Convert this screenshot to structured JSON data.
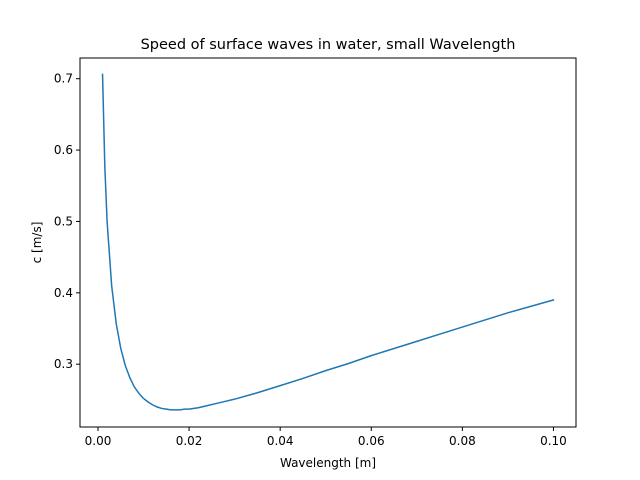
{
  "chart_data": {
    "type": "line",
    "title": "Speed of surface waves in water, small Wavelength",
    "xlabel": "Wavelength [m]",
    "ylabel": "c [m/s]",
    "xlim": [
      -0.00395,
      0.10495
    ],
    "ylim": [
      0.212,
      0.729
    ],
    "xticks": [
      0.0,
      0.02,
      0.04,
      0.06,
      0.08,
      0.1
    ],
    "xtick_labels": [
      "0.00",
      "0.02",
      "0.04",
      "0.06",
      "0.08",
      "0.10"
    ],
    "yticks": [
      0.3,
      0.4,
      0.5,
      0.6,
      0.7
    ],
    "ytick_labels": [
      "0.3",
      "0.4",
      "0.5",
      "0.6",
      "0.7"
    ],
    "grid": false,
    "legend": null,
    "series": [
      {
        "color": "#1f77b4",
        "x": [
          0.001,
          0.0015,
          0.002,
          0.003,
          0.004,
          0.005,
          0.006,
          0.007,
          0.008,
          0.009,
          0.01,
          0.011,
          0.012,
          0.013,
          0.014,
          0.015,
          0.016,
          0.017,
          0.018,
          0.019,
          0.02,
          0.022,
          0.024,
          0.026,
          0.028,
          0.03,
          0.035,
          0.04,
          0.045,
          0.05,
          0.055,
          0.06,
          0.065,
          0.07,
          0.075,
          0.08,
          0.085,
          0.09,
          0.095,
          0.1
        ],
        "y": [
          0.706,
          0.577,
          0.5,
          0.41,
          0.357,
          0.322,
          0.298,
          0.281,
          0.268,
          0.259,
          0.252,
          0.247,
          0.243,
          0.24,
          0.238,
          0.237,
          0.236,
          0.236,
          0.236,
          0.237,
          0.237,
          0.239,
          0.242,
          0.245,
          0.248,
          0.251,
          0.26,
          0.27,
          0.28,
          0.291,
          0.301,
          0.312,
          0.322,
          0.332,
          0.342,
          0.352,
          0.362,
          0.372,
          0.381,
          0.39
        ]
      }
    ]
  }
}
